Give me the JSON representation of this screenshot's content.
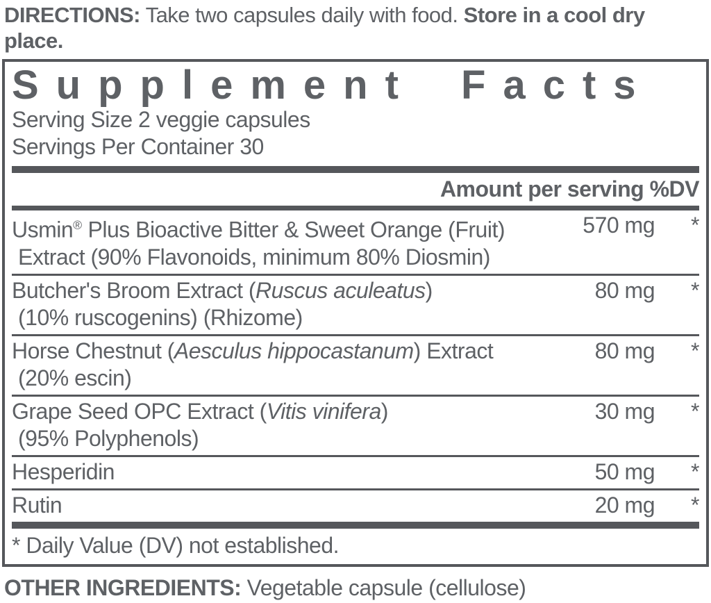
{
  "colors": {
    "text": "#5e6165",
    "rule": "#55575b"
  },
  "directions": {
    "label": "DIRECTIONS:",
    "text_regular": "Take two capsules daily with food.",
    "text_bold": "Store in a cool dry place."
  },
  "panel": {
    "title": "Supplement Facts",
    "serving_size": "Serving Size 2 veggie capsules",
    "servings_per_container": "Servings Per Container 30",
    "column_header": "Amount per serving %DV",
    "rows": [
      {
        "lines": [
          [
            {
              "text": "Usmin",
              "style": "normal"
            },
            {
              "text": "®",
              "style": "sup"
            },
            {
              "text": " Plus Bioactive Bitter & Sweet Orange (Fruit)",
              "style": "normal"
            }
          ],
          [
            {
              "text": "Extract (90% Flavonoids, minimum 80% Diosmin)",
              "style": "normal"
            }
          ]
        ],
        "amount": "570 mg",
        "dv": "*"
      },
      {
        "lines": [
          [
            {
              "text": "Butcher's Broom Extract (",
              "style": "normal"
            },
            {
              "text": "Ruscus aculeatus",
              "style": "italic"
            },
            {
              "text": ")",
              "style": "normal"
            }
          ],
          [
            {
              "text": "(10% ruscogenins) (Rhizome)",
              "style": "normal"
            }
          ]
        ],
        "amount": "80 mg",
        "dv": "*"
      },
      {
        "lines": [
          [
            {
              "text": "Horse Chestnut (",
              "style": "normal"
            },
            {
              "text": "Aesculus hippocastanum",
              "style": "italic"
            },
            {
              "text": ") Extract",
              "style": "normal"
            }
          ],
          [
            {
              "text": "(20% escin)",
              "style": "normal"
            }
          ]
        ],
        "amount": "80 mg",
        "dv": "*"
      },
      {
        "lines": [
          [
            {
              "text": "Grape Seed OPC Extract (",
              "style": "normal"
            },
            {
              "text": "Vitis vinifera",
              "style": "italic"
            },
            {
              "text": ")",
              "style": "normal"
            }
          ],
          [
            {
              "text": "(95% Polyphenols)",
              "style": "normal"
            }
          ]
        ],
        "amount": "30 mg",
        "dv": "*"
      },
      {
        "lines": [
          [
            {
              "text": "Hesperidin",
              "style": "normal"
            }
          ]
        ],
        "amount": "50 mg",
        "dv": "*"
      },
      {
        "lines": [
          [
            {
              "text": "Rutin",
              "style": "normal"
            }
          ]
        ],
        "amount": "20 mg",
        "dv": "*"
      }
    ],
    "footnote": "* Daily Value (DV) not established."
  },
  "other_ingredients": {
    "label": "OTHER INGREDIENTS:",
    "text": "Vegetable capsule (cellulose)"
  }
}
